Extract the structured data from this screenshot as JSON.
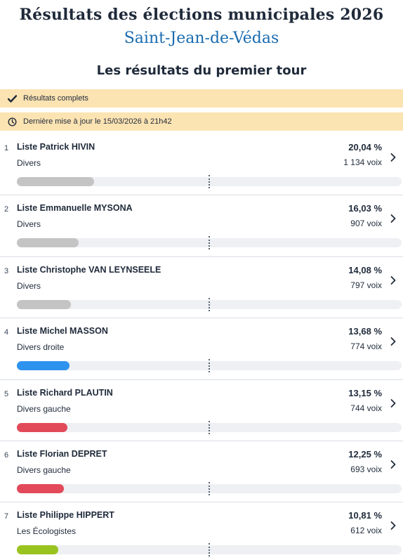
{
  "header": {
    "title": "Résultats des élections municipales 2026",
    "city": "Saint-Jean-de-Védas",
    "subtitle": "Les résultats du premier tour"
  },
  "banners": {
    "status": {
      "icon": "check-icon",
      "text": "Résultats complets"
    },
    "update": {
      "icon": "clock-icon",
      "text": "Dernière mise à jour le 15/03/2026 à 21h42"
    }
  },
  "colors": {
    "grey": "#c4c4c4",
    "blue": "#2e93ee",
    "red": "#e24a5a",
    "green": "#99c31f",
    "banner": "#fce3b2",
    "city": "#1a6bb0"
  },
  "majority_marker_percent": 50,
  "results": [
    {
      "rank": "1",
      "name": "Liste Patrick HIVIN",
      "party": "Divers",
      "percent_label": "20,04 %",
      "votes_label": "1 134 voix",
      "percent": 20.04,
      "color": "#c4c4c4"
    },
    {
      "rank": "2",
      "name": "Liste Emmanuelle MYSONA",
      "party": "Divers",
      "percent_label": "16,03 %",
      "votes_label": "907 voix",
      "percent": 16.03,
      "color": "#c4c4c4"
    },
    {
      "rank": "3",
      "name": "Liste Christophe VAN LEYNSEELE",
      "party": "Divers",
      "percent_label": "14,08 %",
      "votes_label": "797 voix",
      "percent": 14.08,
      "color": "#c4c4c4"
    },
    {
      "rank": "4",
      "name": "Liste Michel MASSON",
      "party": "Divers droite",
      "percent_label": "13,68 %",
      "votes_label": "774 voix",
      "percent": 13.68,
      "color": "#2e93ee"
    },
    {
      "rank": "5",
      "name": "Liste Richard PLAUTIN",
      "party": "Divers gauche",
      "percent_label": "13,15 %",
      "votes_label": "744 voix",
      "percent": 13.15,
      "color": "#e24a5a"
    },
    {
      "rank": "6",
      "name": "Liste Florian DEPRET",
      "party": "Divers gauche",
      "percent_label": "12,25 %",
      "votes_label": "693 voix",
      "percent": 12.25,
      "color": "#e24a5a"
    },
    {
      "rank": "7",
      "name": "Liste Philippe HIPPERT",
      "party": "Les Écologistes",
      "percent_label": "10,81 %",
      "votes_label": "612 voix",
      "percent": 10.81,
      "color": "#99c31f"
    }
  ]
}
